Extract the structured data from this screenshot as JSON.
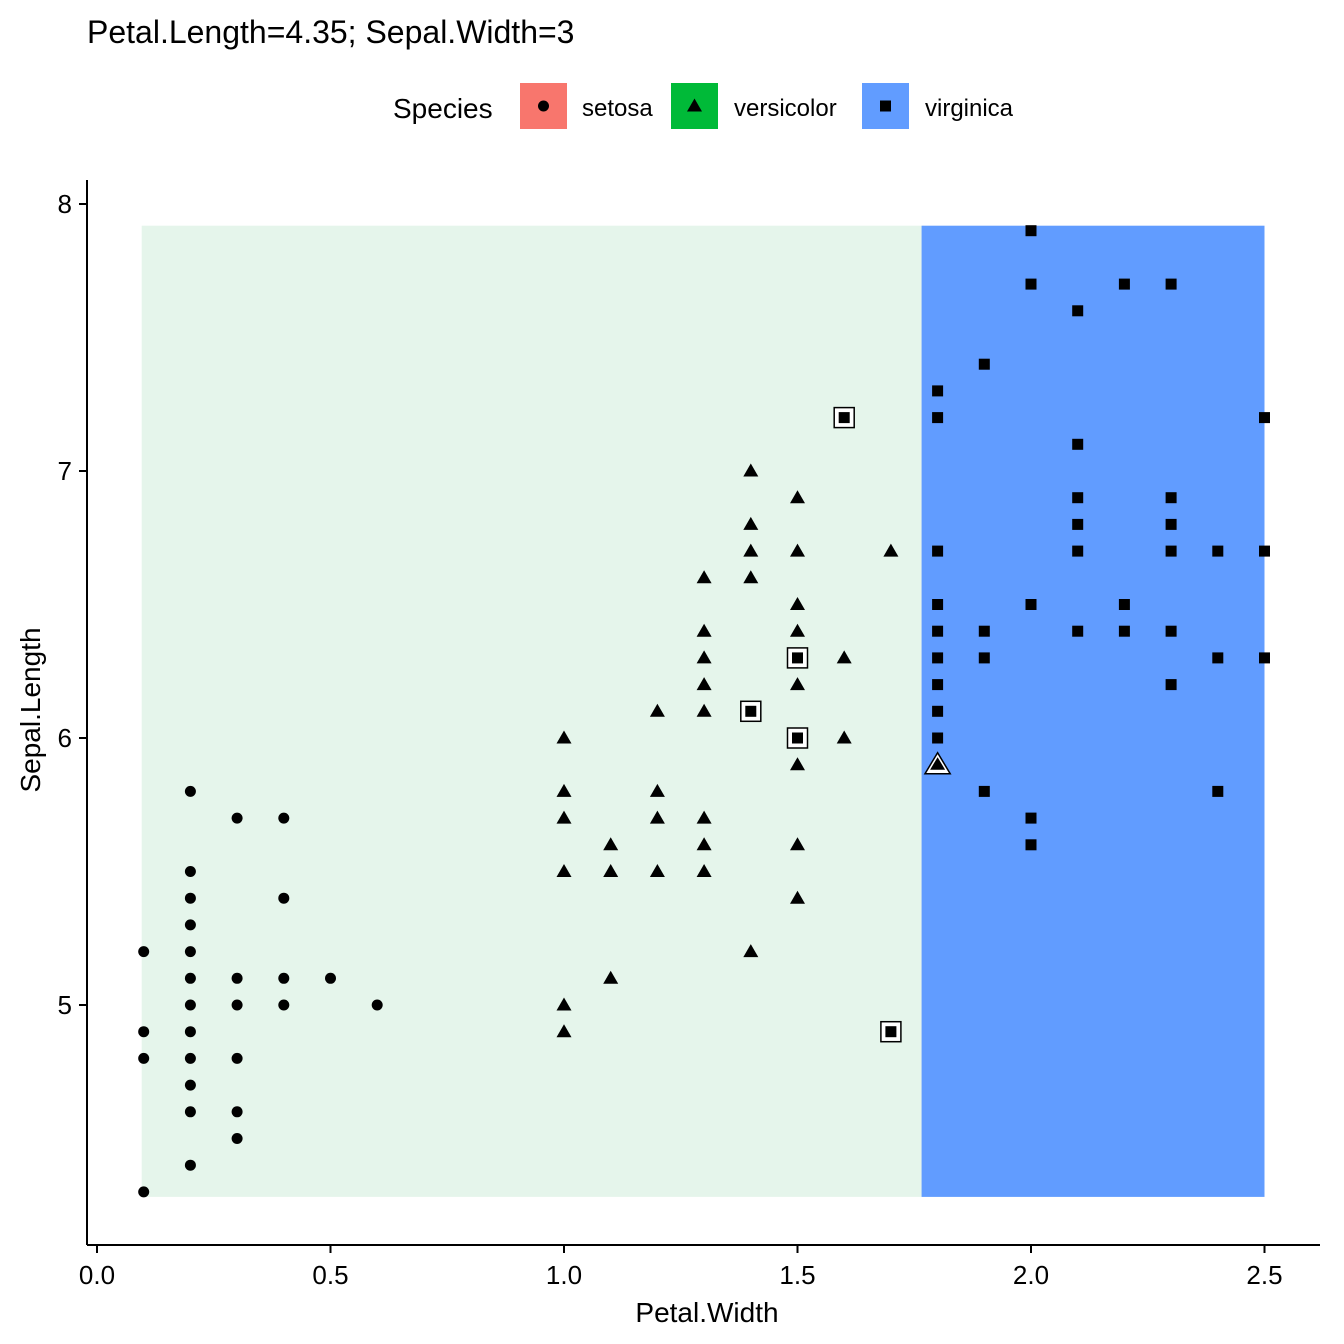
{
  "chart_data": {
    "type": "scatter",
    "title": "Petal.Length=4.35; Sepal.Width=3",
    "xlabel": "Petal.Width",
    "ylabel": "Sepal.Length",
    "xlim": [
      -0.02,
      2.6
    ],
    "ylim": [
      4.1,
      8.1
    ],
    "x_ticks": [
      "0.0",
      "0.5",
      "1.0",
      "1.5",
      "2.0",
      "2.5"
    ],
    "y_ticks": [
      "5",
      "6",
      "7",
      "8"
    ],
    "grid": false,
    "legend": {
      "title": "Species",
      "position": "top",
      "items": [
        {
          "name": "setosa",
          "shape": "circle",
          "color": "#F8766D"
        },
        {
          "name": "versicolor",
          "shape": "triangle",
          "color": "#00BA38"
        },
        {
          "name": "virginica",
          "shape": "square",
          "color": "#619CFF"
        }
      ]
    },
    "regions": [
      {
        "label": "versicolor",
        "x": [
          0.1,
          1.77
        ],
        "y": [
          4.3,
          7.9
        ],
        "color": "#E5F5EB"
      },
      {
        "label": "virginica",
        "x": [
          1.77,
          2.5
        ],
        "y": [
          4.3,
          7.9
        ],
        "color": "#619CFF"
      }
    ],
    "series": [
      {
        "name": "setosa",
        "shape": "circle",
        "points": [
          [
            0.1,
            5.2
          ],
          [
            0.1,
            4.9
          ],
          [
            0.1,
            4.8
          ],
          [
            0.1,
            4.3
          ],
          [
            0.2,
            5.8
          ],
          [
            0.2,
            5.5
          ],
          [
            0.2,
            5.4
          ],
          [
            0.2,
            5.3
          ],
          [
            0.2,
            5.2
          ],
          [
            0.2,
            5.1
          ],
          [
            0.2,
            5.0
          ],
          [
            0.2,
            4.9
          ],
          [
            0.2,
            4.8
          ],
          [
            0.2,
            4.7
          ],
          [
            0.2,
            4.6
          ],
          [
            0.2,
            4.4
          ],
          [
            0.3,
            5.7
          ],
          [
            0.3,
            5.1
          ],
          [
            0.3,
            5.0
          ],
          [
            0.3,
            4.8
          ],
          [
            0.3,
            4.6
          ],
          [
            0.3,
            4.5
          ],
          [
            0.4,
            5.7
          ],
          [
            0.4,
            5.4
          ],
          [
            0.4,
            5.1
          ],
          [
            0.4,
            5.0
          ],
          [
            0.5,
            5.1
          ],
          [
            0.6,
            5.0
          ]
        ]
      },
      {
        "name": "versicolor",
        "shape": "triangle",
        "points": [
          [
            1.0,
            6.0
          ],
          [
            1.0,
            5.8
          ],
          [
            1.0,
            5.7
          ],
          [
            1.0,
            5.5
          ],
          [
            1.0,
            5.0
          ],
          [
            1.0,
            4.9
          ],
          [
            1.1,
            5.6
          ],
          [
            1.1,
            5.5
          ],
          [
            1.1,
            5.1
          ],
          [
            1.2,
            6.1
          ],
          [
            1.2,
            5.8
          ],
          [
            1.2,
            5.7
          ],
          [
            1.2,
            5.5
          ],
          [
            1.3,
            6.6
          ],
          [
            1.3,
            6.4
          ],
          [
            1.3,
            6.3
          ],
          [
            1.3,
            6.2
          ],
          [
            1.3,
            6.1
          ],
          [
            1.3,
            5.7
          ],
          [
            1.3,
            5.6
          ],
          [
            1.3,
            5.5
          ],
          [
            1.4,
            7.0
          ],
          [
            1.4,
            6.8
          ],
          [
            1.4,
            6.7
          ],
          [
            1.4,
            6.6
          ],
          [
            1.4,
            5.2
          ],
          [
            1.5,
            6.9
          ],
          [
            1.5,
            6.7
          ],
          [
            1.5,
            6.5
          ],
          [
            1.5,
            6.4
          ],
          [
            1.5,
            6.2
          ],
          [
            1.5,
            5.9
          ],
          [
            1.5,
            5.6
          ],
          [
            1.5,
            5.4
          ],
          [
            1.6,
            6.3
          ],
          [
            1.6,
            6.0
          ],
          [
            1.7,
            6.7
          ]
        ],
        "highlighted": [
          [
            1.8,
            5.9
          ]
        ]
      },
      {
        "name": "virginica",
        "shape": "square",
        "points": [
          [
            1.8,
            7.3
          ],
          [
            1.8,
            7.2
          ],
          [
            1.8,
            6.7
          ],
          [
            1.8,
            6.5
          ],
          [
            1.8,
            6.4
          ],
          [
            1.8,
            6.3
          ],
          [
            1.8,
            6.2
          ],
          [
            1.8,
            6.1
          ],
          [
            1.8,
            6.0
          ],
          [
            1.9,
            7.4
          ],
          [
            1.9,
            6.4
          ],
          [
            1.9,
            6.3
          ],
          [
            1.9,
            5.8
          ],
          [
            2.0,
            7.9
          ],
          [
            2.0,
            7.7
          ],
          [
            2.0,
            6.5
          ],
          [
            2.0,
            5.7
          ],
          [
            2.0,
            5.6
          ],
          [
            2.1,
            7.6
          ],
          [
            2.1,
            7.1
          ],
          [
            2.1,
            6.9
          ],
          [
            2.1,
            6.8
          ],
          [
            2.1,
            6.7
          ],
          [
            2.1,
            6.4
          ],
          [
            2.2,
            7.7
          ],
          [
            2.2,
            6.5
          ],
          [
            2.2,
            6.4
          ],
          [
            2.3,
            7.7
          ],
          [
            2.3,
            6.9
          ],
          [
            2.3,
            6.8
          ],
          [
            2.3,
            6.7
          ],
          [
            2.3,
            6.4
          ],
          [
            2.3,
            6.2
          ],
          [
            2.4,
            6.7
          ],
          [
            2.4,
            6.3
          ],
          [
            2.4,
            5.8
          ],
          [
            2.5,
            7.2
          ],
          [
            2.5,
            6.7
          ],
          [
            2.5,
            6.3
          ]
        ],
        "highlighted": [
          [
            1.6,
            7.2
          ],
          [
            1.5,
            6.3
          ],
          [
            1.4,
            6.1
          ],
          [
            1.5,
            6.0
          ],
          [
            1.7,
            4.9
          ]
        ]
      }
    ]
  }
}
